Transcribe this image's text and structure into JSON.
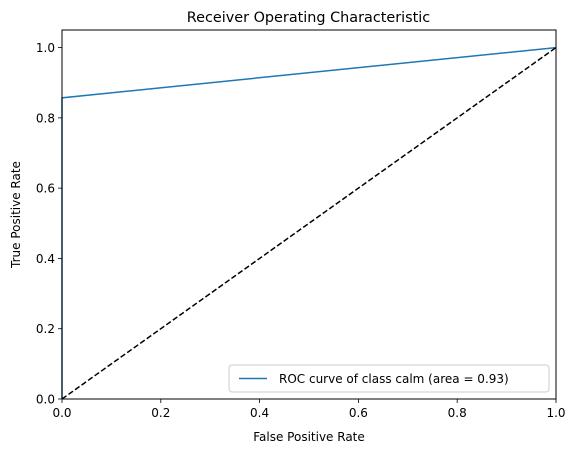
{
  "chart_data": {
    "type": "line",
    "title": "Receiver Operating Characteristic",
    "xlabel": "False Positive Rate",
    "ylabel": "True Positive Rate",
    "xlim": [
      0.0,
      1.0
    ],
    "ylim": [
      0.0,
      1.05
    ],
    "x_ticks": [
      "0.0",
      "0.2",
      "0.4",
      "0.6",
      "0.8",
      "1.0"
    ],
    "y_ticks": [
      "0.0",
      "0.2",
      "0.4",
      "0.6",
      "0.8",
      "1.0"
    ],
    "grid": false,
    "legend_position": "lower right",
    "series": [
      {
        "name": "ROC curve of class calm (area = 0.93)",
        "color": "#1f77b4",
        "style": "solid",
        "x": [
          0.0,
          0.0,
          1.0
        ],
        "y": [
          0.0,
          0.857,
          1.0
        ]
      },
      {
        "color": "#000000",
        "style": "dashed",
        "x": [
          0.0,
          1.0
        ],
        "y": [
          0.0,
          1.0
        ]
      }
    ]
  }
}
